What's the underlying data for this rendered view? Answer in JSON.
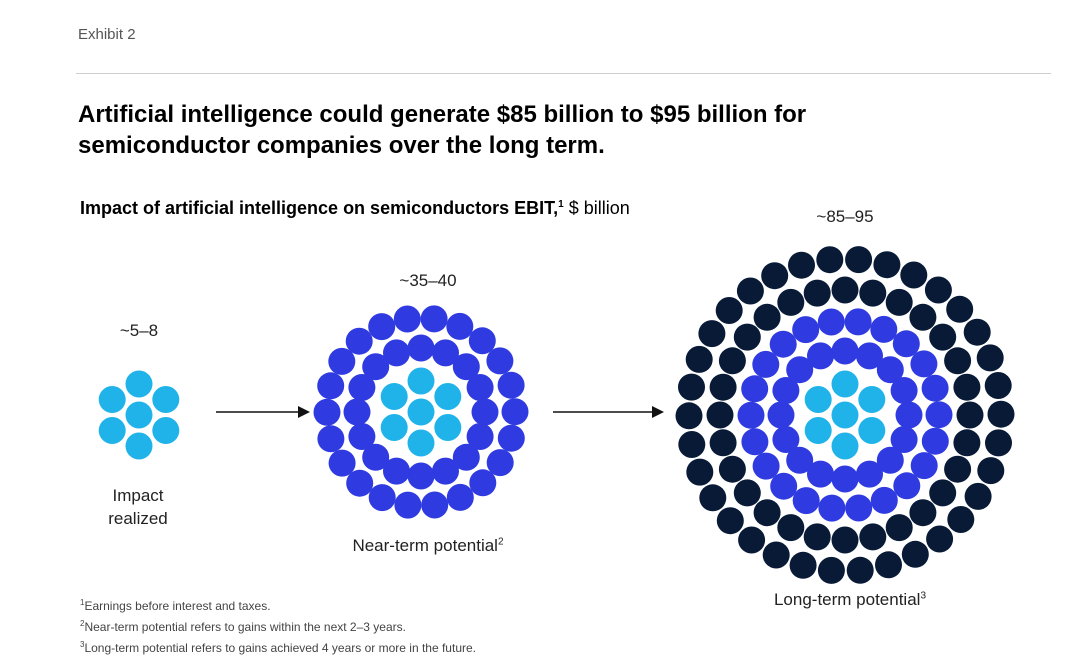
{
  "exhibit_label": "Exhibit 2",
  "title": "Artificial intelligence could generate $85 billion to $95 billion for semiconductor companies over the long term.",
  "chart_data": {
    "type": "bubble-cluster",
    "title": "Impact of artificial intelligence on semiconductors EBIT,",
    "title_footnote": "1",
    "unit": "$ billion",
    "stages": [
      {
        "label": "Impact realized",
        "footnote": "",
        "range": "~5–8",
        "low": 5,
        "high": 8
      },
      {
        "label": "Near-term potential",
        "footnote": "2",
        "range": "~35–40",
        "low": 35,
        "high": 40
      },
      {
        "label": "Long-term potential",
        "footnote": "3",
        "range": "~85–95",
        "low": 85,
        "high": 95
      }
    ],
    "colors": {
      "realized": "#1fb3ea",
      "near_term": "#2f3be0",
      "long_term": "#081a36"
    }
  },
  "footnotes": [
    {
      "num": "1",
      "text": "Earnings before interest and taxes."
    },
    {
      "num": "2",
      "text": "Near-term potential refers to gains within the next 2–3 years."
    },
    {
      "num": "3",
      "text": "Long-term potential refers to gains achieved 4 years or more in the future."
    }
  ]
}
